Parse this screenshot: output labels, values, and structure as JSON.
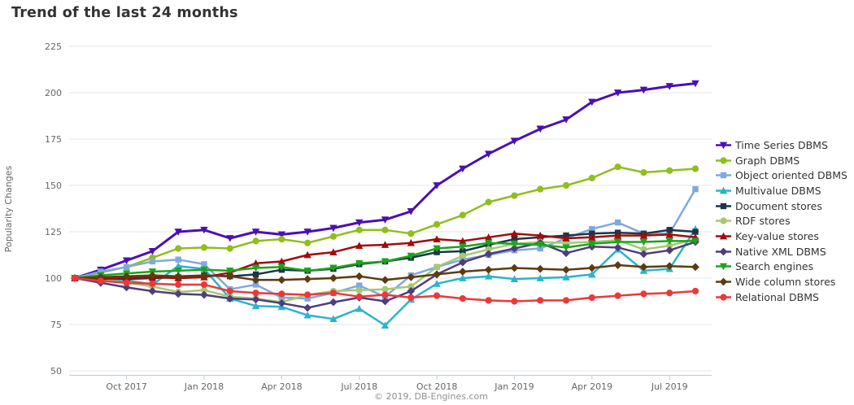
{
  "title": "Trend of the last 24 months",
  "footer": "© 2019, DB-Engines.com",
  "style": {
    "title_color": "#333333",
    "grid_color": "#e6e6e6",
    "axis_line_color": "#b6cddd",
    "tick_label_color": "#666666",
    "axis_title_color": "#666666",
    "legend_text_color": "#333333",
    "credits_color": "#8f8f8f"
  },
  "chart_data": {
    "type": "line",
    "title": "Trend of the last 24 months",
    "xlabel": "",
    "ylabel": "Popularity Changes",
    "ylim": [
      50,
      225
    ],
    "y_ticks": [
      50,
      75,
      100,
      125,
      150,
      175,
      200,
      225
    ],
    "grid": "horizontal",
    "legend_position": "right",
    "x": [
      "Aug 2017",
      "Sep 2017",
      "Oct 2017",
      "Nov 2017",
      "Dec 2017",
      "Jan 2018",
      "Feb 2018",
      "Mar 2018",
      "Apr 2018",
      "May 2018",
      "Jun 2018",
      "Jul 2018",
      "Aug 2018",
      "Sep 2018",
      "Oct 2018",
      "Nov 2018",
      "Dec 2018",
      "Jan 2019",
      "Feb 2019",
      "Mar 2019",
      "Apr 2019",
      "May 2019",
      "Jun 2019",
      "Jul 2019",
      "Aug 2019"
    ],
    "x_ticks": [
      {
        "label": "Oct 2017",
        "month_index": 2
      },
      {
        "label": "Jan 2018",
        "month_index": 5
      },
      {
        "label": "Apr 2018",
        "month_index": 8
      },
      {
        "label": "Jul 2018",
        "month_index": 11
      },
      {
        "label": "Oct 2018",
        "month_index": 14
      },
      {
        "label": "Jan 2019",
        "month_index": 17
      },
      {
        "label": "Apr 2019",
        "month_index": 20
      },
      {
        "label": "Jul 2019",
        "month_index": 23
      }
    ],
    "series": [
      {
        "name": "Time Series DBMS",
        "color": "#4A10B4",
        "marker": "triangle-down",
        "values": [
          100,
          104.5,
          109.5,
          114.5,
          125,
          126,
          121.5,
          125,
          123.5,
          125,
          127,
          130,
          131.5,
          136,
          150,
          159,
          167,
          174,
          180.5,
          185.5,
          195,
          200,
          201.5,
          203.5,
          205
        ]
      },
      {
        "name": "Graph DBMS",
        "color": "#90BE1C",
        "marker": "circle",
        "values": [
          100,
          103,
          106,
          111,
          116,
          116.5,
          116,
          120,
          121,
          119,
          122.5,
          126,
          126,
          124,
          129,
          134,
          141,
          144.5,
          148,
          150,
          154,
          160,
          157,
          158,
          159
        ]
      },
      {
        "name": "Object oriented DBMS",
        "color": "#7FA9DE",
        "marker": "square",
        "values": [
          100,
          103.5,
          106,
          109,
          110,
          107.5,
          94,
          96.5,
          89.5,
          89,
          92,
          96,
          90,
          101.5,
          106,
          110,
          112.5,
          115,
          116,
          121.5,
          126.5,
          130,
          124,
          124,
          148
        ]
      },
      {
        "name": "Multivalue DBMS",
        "color": "#2BB3CB",
        "marker": "triangle-up",
        "values": [
          100,
          98.5,
          99,
          96.5,
          106.5,
          105,
          89,
          85,
          84.5,
          80,
          78,
          83.5,
          74.5,
          88.5,
          97,
          100,
          101,
          99.5,
          100,
          100.5,
          102,
          115.5,
          104,
          105,
          126.5
        ]
      },
      {
        "name": "Document stores",
        "color": "#1D3549",
        "marker": "square",
        "values": [
          100,
          100,
          99.5,
          100,
          100.5,
          101.5,
          101,
          102,
          104.5,
          104,
          105,
          107.5,
          109,
          111,
          114,
          114.5,
          118,
          121,
          122,
          123,
          124,
          124.5,
          124,
          126,
          125
        ]
      },
      {
        "name": "RDF stores",
        "color": "#A5C873",
        "marker": "circle",
        "values": [
          100,
          99,
          97.5,
          95.5,
          92.5,
          93.5,
          90,
          89,
          87,
          91,
          93,
          93.5,
          94,
          95.5,
          106,
          112,
          115.5,
          118.5,
          119.5,
          119,
          119.5,
          120.5,
          115.5,
          117.5,
          121
        ]
      },
      {
        "name": "Key-value stores",
        "color": "#A30B0B",
        "marker": "triangle-up",
        "values": [
          100,
          99.5,
          100,
          100.5,
          100,
          100.5,
          103,
          108,
          109,
          112.5,
          114,
          117.5,
          118,
          119,
          121,
          120,
          122,
          124,
          123,
          121.5,
          122,
          123,
          123,
          123.5,
          122
        ]
      },
      {
        "name": "Native XML DBMS",
        "color": "#503C7E",
        "marker": "diamond",
        "values": [
          100,
          97.5,
          95,
          93,
          91.5,
          91,
          89,
          88.5,
          86.5,
          84,
          87,
          89.5,
          87.5,
          93,
          102,
          108.5,
          113,
          116,
          119,
          113.5,
          117,
          116.5,
          113,
          115,
          119.5
        ]
      },
      {
        "name": "Search engines",
        "color": "#1BA51B",
        "marker": "triangle-down",
        "values": [
          100,
          101.5,
          102.5,
          103.5,
          104,
          104.5,
          104,
          105.5,
          106,
          104,
          105.5,
          108,
          109,
          112,
          116,
          117,
          119,
          118.5,
          118,
          116.5,
          118.5,
          119.5,
          119.5,
          120,
          120
        ]
      },
      {
        "name": "Wide column stores",
        "color": "#5D3B10",
        "marker": "diamond",
        "values": [
          100,
          100.5,
          101,
          101.5,
          101,
          101.5,
          101,
          99,
          99,
          99.5,
          100,
          101,
          99,
          100.5,
          102,
          103.5,
          104.5,
          105.5,
          105,
          104.5,
          105.5,
          107,
          106,
          106.5,
          106
        ]
      },
      {
        "name": "Relational DBMS",
        "color": "#EC3838",
        "marker": "circle",
        "values": [
          100,
          98.5,
          97.5,
          97,
          96.5,
          96.5,
          93,
          92,
          91.5,
          91,
          92,
          90,
          91,
          89.5,
          90.5,
          89,
          88,
          87.5,
          88,
          88,
          89.5,
          90.5,
          91.5,
          92,
          93
        ]
      }
    ]
  }
}
